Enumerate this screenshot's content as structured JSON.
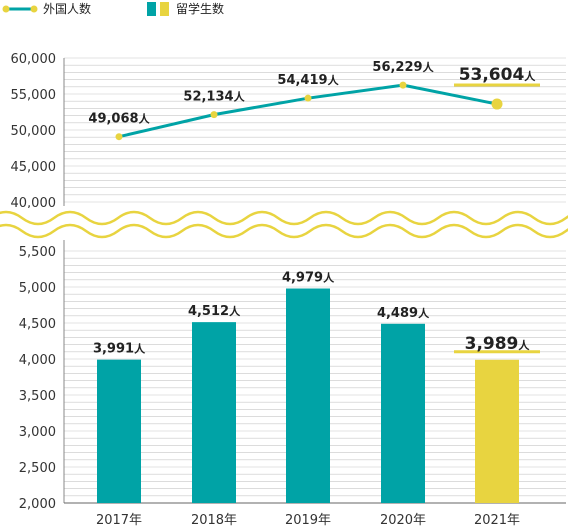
{
  "colors": {
    "teal": "#00A3A6",
    "yellow": "#E8D440",
    "grid": "#C8C8C8",
    "text": "#222222"
  },
  "legend": {
    "line_label": "外国人数",
    "bar_label": "留学生数"
  },
  "chart_data": {
    "type": "bar",
    "categories": [
      "2017年",
      "2018年",
      "2019年",
      "2020年",
      "2021年"
    ],
    "unit": "人",
    "series": [
      {
        "name": "外国人数",
        "type": "line",
        "values": [
          49068,
          52134,
          54419,
          56229,
          53604
        ],
        "labels": [
          "49,068",
          "52,134",
          "54,419",
          "56,229",
          "53,604"
        ]
      },
      {
        "name": "留学生数",
        "type": "bar",
        "values": [
          3991,
          4512,
          4979,
          4489,
          3989
        ],
        "labels": [
          "3,991",
          "4,512",
          "4,979",
          "4,489",
          "3,989"
        ]
      }
    ],
    "highlight_index": 4,
    "upper_axis": {
      "ticks": [
        "60,000",
        "55,000",
        "50,000",
        "45,000",
        "40,000"
      ],
      "values": [
        60000,
        55000,
        50000,
        45000,
        40000
      ],
      "ylim": [
        40000,
        60000
      ]
    },
    "lower_axis": {
      "ticks": [
        "5,500",
        "5,000",
        "4,500",
        "4,000",
        "3,500",
        "3,000",
        "2,500",
        "2,000"
      ],
      "values": [
        5500,
        5000,
        4500,
        4000,
        3500,
        3000,
        2500,
        2000
      ],
      "ylim": [
        2000,
        5500
      ]
    },
    "axis_break": true,
    "grid": true,
    "legend_position": "top-left"
  }
}
